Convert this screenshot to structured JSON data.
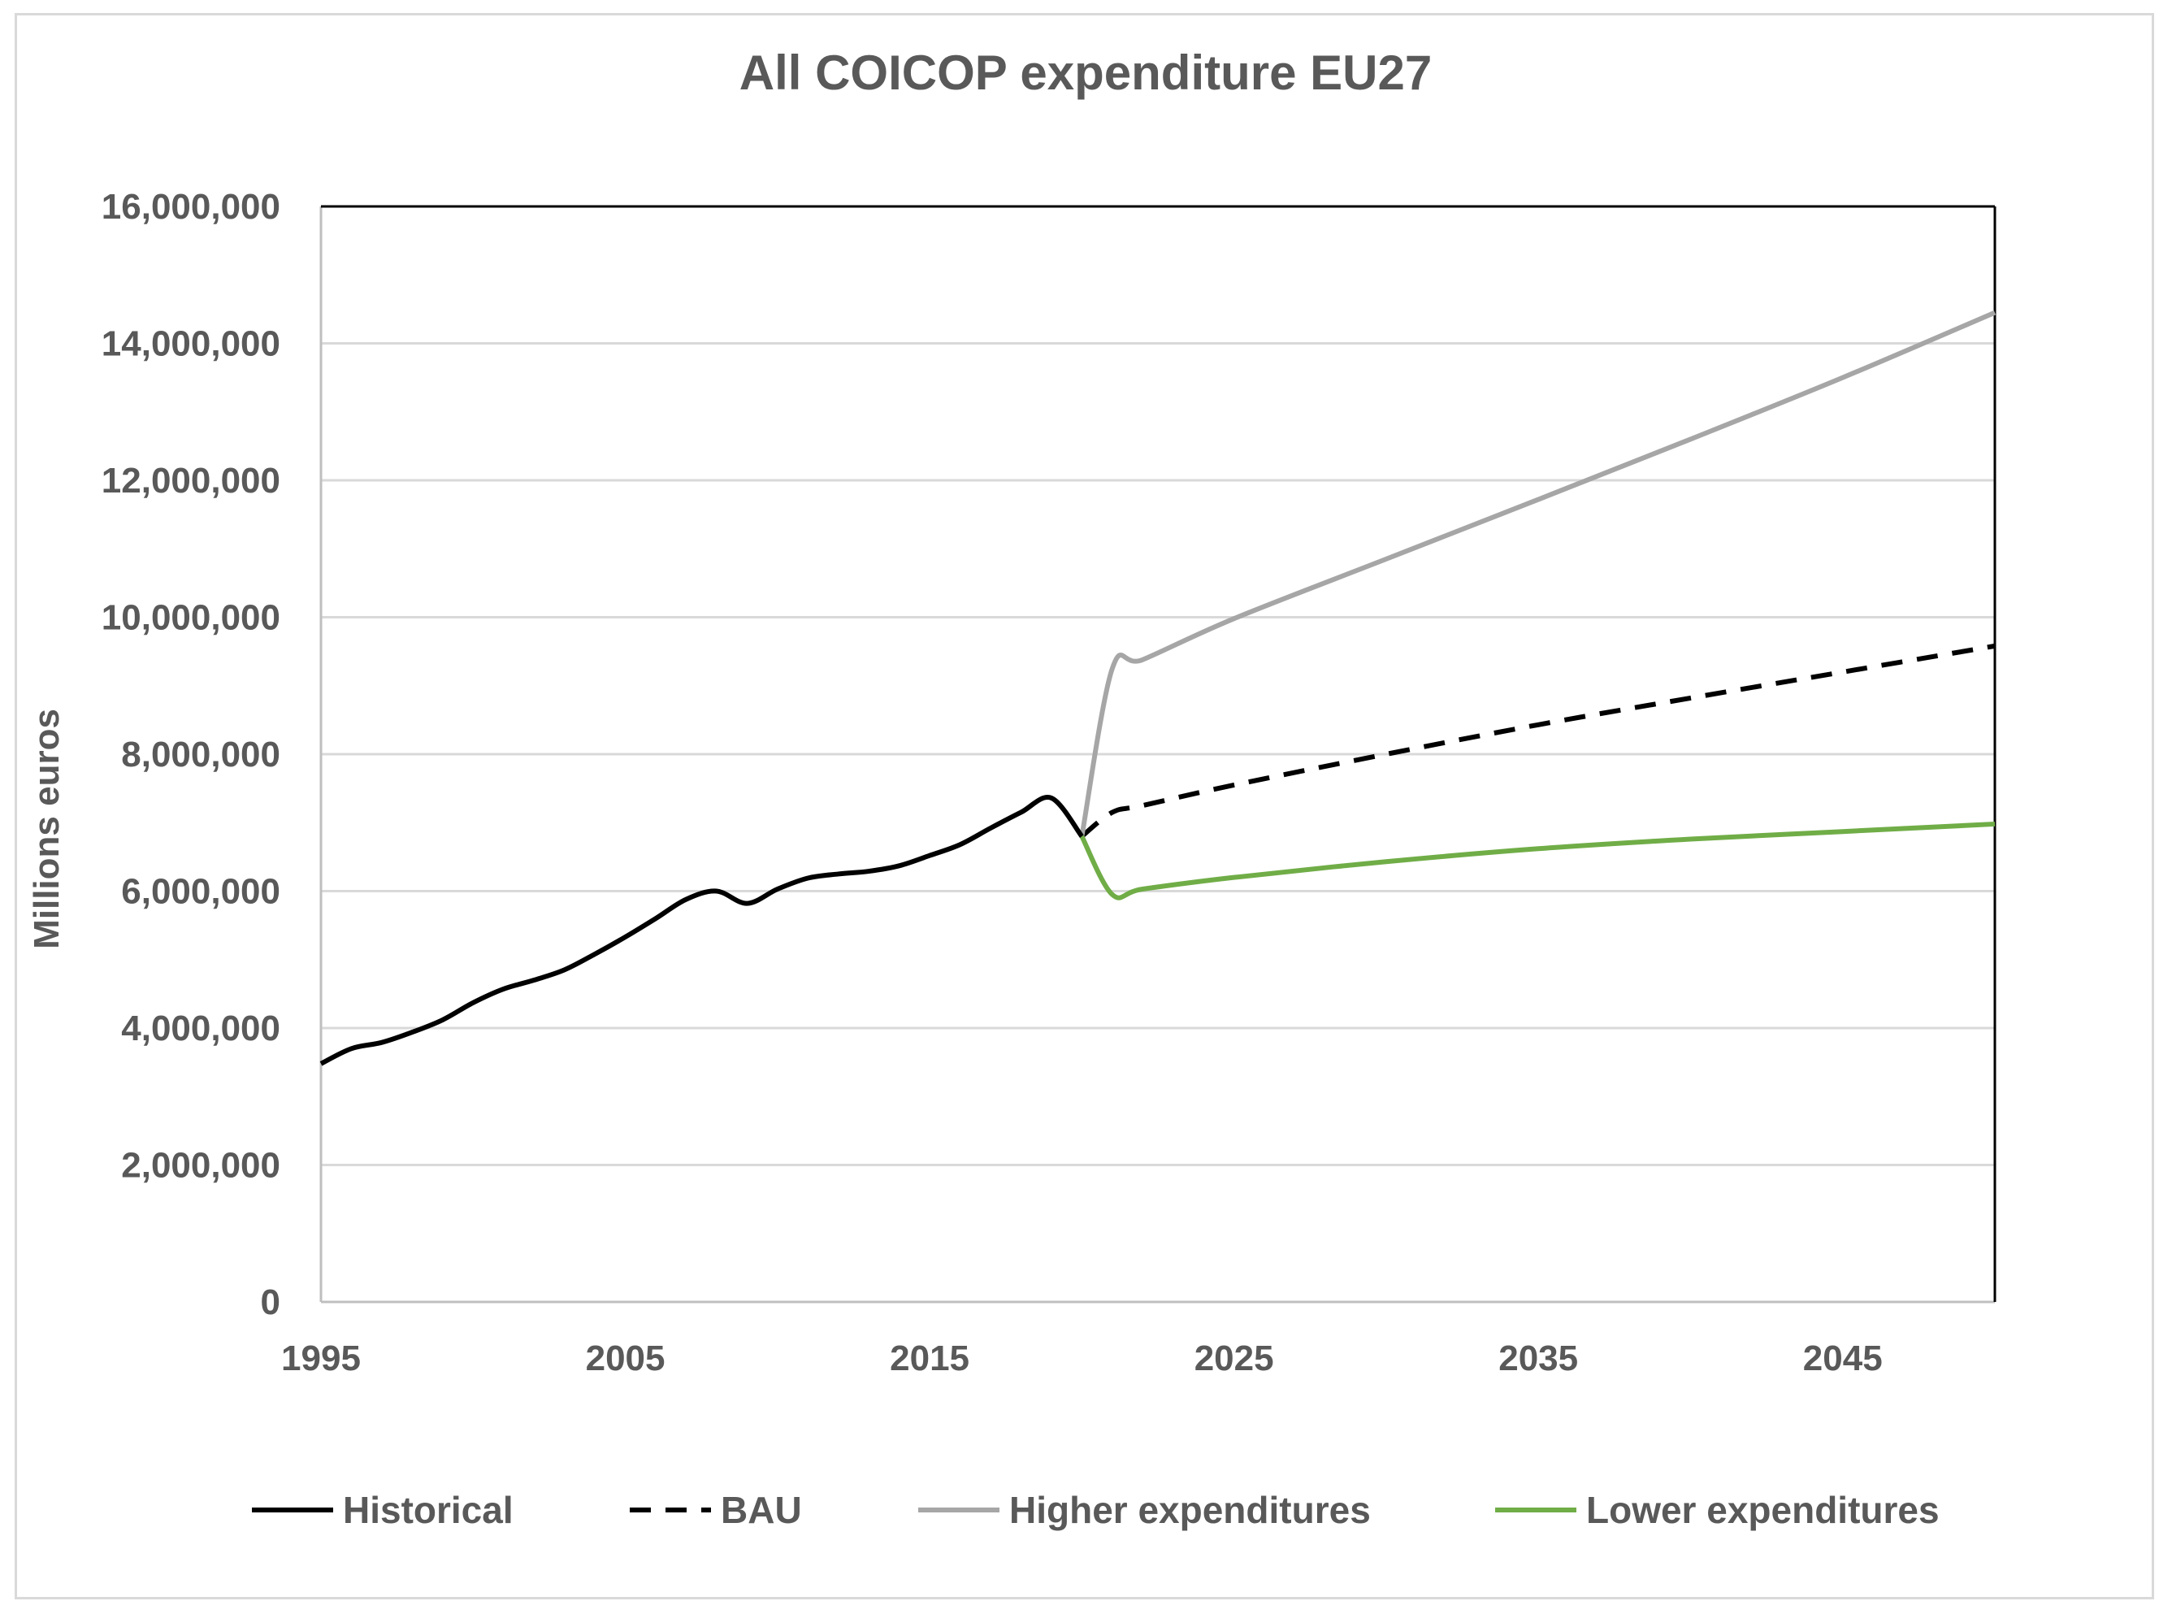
{
  "chart_data": {
    "type": "line",
    "title": "All COICOP expenditure EU27",
    "xlabel": "",
    "ylabel": "Millions euros",
    "xlim": [
      1995,
      2050
    ],
    "ylim": [
      0,
      16000000
    ],
    "x_ticks": [
      1995,
      2005,
      2015,
      2025,
      2035,
      2045
    ],
    "x_tick_labels": [
      "1995",
      "2005",
      "2015",
      "2025",
      "2035",
      "2045"
    ],
    "y_ticks": [
      0,
      2000000,
      4000000,
      6000000,
      8000000,
      10000000,
      12000000,
      14000000,
      16000000
    ],
    "y_tick_labels": [
      "0",
      "2,000,000",
      "4,000,000",
      "6,000,000",
      "8,000,000",
      "10,000,000",
      "12,000,000",
      "14,000,000",
      "16,000,000"
    ],
    "grid": true,
    "legend_position": "bottom",
    "series": [
      {
        "name": "Historical",
        "color": "#000000",
        "dash": "solid",
        "x": [
          1995,
          1996,
          1997,
          1998,
          1999,
          2000,
          2001,
          2002,
          2003,
          2004,
          2005,
          2006,
          2007,
          2008,
          2009,
          2010,
          2011,
          2012,
          2013,
          2014,
          2015,
          2016,
          2017,
          2018,
          2019,
          2020
        ],
        "values": [
          3480000,
          3700000,
          3790000,
          3940000,
          4120000,
          4370000,
          4570000,
          4700000,
          4850000,
          5080000,
          5330000,
          5600000,
          5880000,
          6000000,
          5820000,
          6030000,
          6190000,
          6250000,
          6290000,
          6370000,
          6520000,
          6680000,
          6920000,
          7150000,
          7360000,
          6800000
        ]
      },
      {
        "name": "BAU",
        "color": "#000000",
        "dash": "dashed",
        "x": [
          2020,
          2021,
          2022,
          2025,
          2030,
          2035,
          2040,
          2045,
          2050
        ],
        "values": [
          6800000,
          7150000,
          7250000,
          7550000,
          8000000,
          8430000,
          8820000,
          9200000,
          9580000
        ]
      },
      {
        "name": "Higher expenditures",
        "color": "#a6a6a6",
        "dash": "solid",
        "x": [
          2020,
          2021,
          2022,
          2025,
          2030,
          2035,
          2040,
          2045,
          2050
        ],
        "values": [
          6800000,
          9250000,
          9380000,
          9980000,
          10850000,
          11720000,
          12600000,
          13500000,
          14450000
        ]
      },
      {
        "name": "Lower expenditures",
        "color": "#70ad47",
        "dash": "solid",
        "x": [
          2020,
          2021,
          2022,
          2025,
          2030,
          2035,
          2040,
          2045,
          2050
        ],
        "values": [
          6800000,
          5950000,
          6030000,
          6200000,
          6430000,
          6620000,
          6760000,
          6870000,
          6980000
        ]
      }
    ]
  }
}
